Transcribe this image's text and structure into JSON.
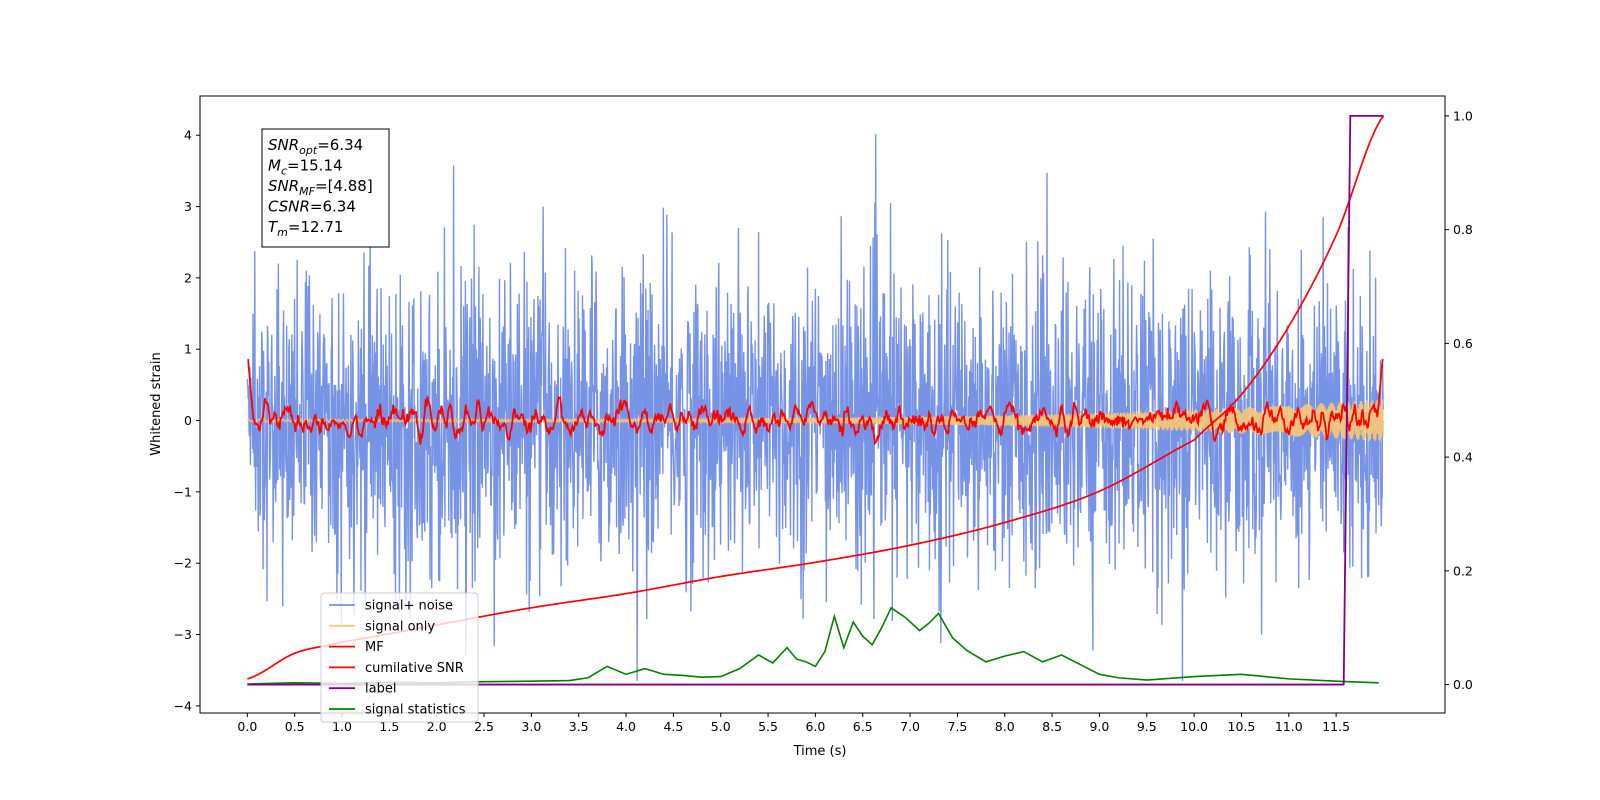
{
  "chart_data": {
    "type": "line",
    "title": "",
    "xlabel": "Time (s)",
    "ylabel": "Whitened strain",
    "xlim": [
      -0.5,
      12.65
    ],
    "ylim": [
      -4.1,
      4.55
    ],
    "y2lim": [
      -0.05,
      1.035
    ],
    "xticks": [
      0.0,
      0.5,
      1.0,
      1.5,
      2.0,
      2.5,
      3.0,
      3.5,
      4.0,
      4.5,
      5.0,
      5.5,
      6.0,
      6.5,
      7.0,
      7.5,
      8.0,
      8.5,
      9.0,
      9.5,
      10.0,
      10.5,
      11.0,
      11.5
    ],
    "xtick_labels": [
      "0.0",
      "0.5",
      "1.0",
      "1.5",
      "2.0",
      "2.5",
      "3.0",
      "3.5",
      "4.0",
      "4.5",
      "5.0",
      "5.5",
      "6.0",
      "6.5",
      "7.0",
      "7.5",
      "8.0",
      "8.5",
      "9.0",
      "9.5",
      "10.0",
      "10.5",
      "11.0",
      "11.5"
    ],
    "yticks": [
      -4,
      -3,
      -2,
      -1,
      0,
      1,
      2,
      3,
      4
    ],
    "ytick_labels": [
      "−4",
      "−3",
      "−2",
      "−1",
      "0",
      "1",
      "2",
      "3",
      "4"
    ],
    "y2ticks": [
      0.0,
      0.2,
      0.4,
      0.6,
      0.8,
      1.0
    ],
    "y2tick_labels": [
      "0.0",
      "0.2",
      "0.4",
      "0.6",
      "0.8",
      "1.0"
    ],
    "grid": false,
    "legend_position": "lower-left",
    "series": [
      {
        "name": "signal+ noise",
        "axis": "left",
        "color": "#7793e6",
        "approx": "noise band spanning roughly -2.3 to 2.3 with spikes to about -3.6 and 4.2, over t = 0 to 12.0 s"
      },
      {
        "name": "signal only",
        "axis": "left",
        "color": "#f7c873",
        "approx": "chirp centred on 0, amplitude growing from about 0.02 to 0.3 at t = 12.0 s"
      },
      {
        "name": "MF",
        "axis": "left",
        "color": "#ff0000",
        "approx": "matched-filter output around 0 with excursions -0.3 to 0.8, starting and ending near 1.0"
      },
      {
        "name": "cumilative SNR",
        "axis": "right",
        "color": "#ff0000",
        "x": [
          0.0,
          0.5,
          1.0,
          2.0,
          3.0,
          4.0,
          5.0,
          6.0,
          7.0,
          8.0,
          9.0,
          10.0,
          10.5,
          11.0,
          11.5,
          12.0
        ],
        "y": [
          0.01,
          0.055,
          0.075,
          0.105,
          0.135,
          0.16,
          0.19,
          0.215,
          0.245,
          0.285,
          0.34,
          0.43,
          0.51,
          0.63,
          0.79,
          1.0
        ]
      },
      {
        "name": "label",
        "axis": "right",
        "color": "#800080",
        "x": [
          0.0,
          11.58,
          11.65,
          12.0
        ],
        "y": [
          0.0,
          0.0,
          1.0,
          1.0
        ]
      },
      {
        "name": "signal statistics",
        "axis": "right",
        "color": "#008000",
        "x": [
          0.0,
          0.5,
          1.0,
          1.5,
          2.0,
          2.5,
          3.0,
          3.4,
          3.6,
          3.8,
          4.0,
          4.2,
          4.4,
          4.6,
          4.8,
          5.0,
          5.2,
          5.4,
          5.55,
          5.7,
          5.8,
          5.9,
          6.0,
          6.1,
          6.2,
          6.3,
          6.4,
          6.5,
          6.6,
          6.7,
          6.8,
          6.95,
          7.1,
          7.2,
          7.3,
          7.45,
          7.6,
          7.8,
          8.0,
          8.2,
          8.4,
          8.6,
          8.8,
          9.0,
          9.2,
          9.5,
          10.0,
          10.5,
          11.0,
          11.5,
          11.95
        ],
        "y": [
          0.001,
          0.003,
          0.002,
          0.004,
          0.003,
          0.005,
          0.006,
          0.007,
          0.012,
          0.032,
          0.018,
          0.028,
          0.018,
          0.016,
          0.013,
          0.014,
          0.028,
          0.052,
          0.038,
          0.065,
          0.045,
          0.04,
          0.032,
          0.058,
          0.12,
          0.065,
          0.11,
          0.085,
          0.07,
          0.1,
          0.135,
          0.118,
          0.095,
          0.108,
          0.125,
          0.082,
          0.06,
          0.04,
          0.05,
          0.058,
          0.04,
          0.052,
          0.035,
          0.018,
          0.012,
          0.008,
          0.014,
          0.018,
          0.01,
          0.006,
          0.003
        ]
      }
    ],
    "annotation_lines": [
      {
        "base": "SNR",
        "sub": "opt",
        "value": "=6.34"
      },
      {
        "base": "M",
        "sub": "c",
        "value": "=15.14"
      },
      {
        "base": "SNR",
        "sub": "MF",
        "value": "=[4.88]"
      },
      {
        "base": "CSNR",
        "sub": "",
        "value": "=6.34"
      },
      {
        "base": "T",
        "sub": "m",
        "value": "=12.71"
      }
    ]
  }
}
